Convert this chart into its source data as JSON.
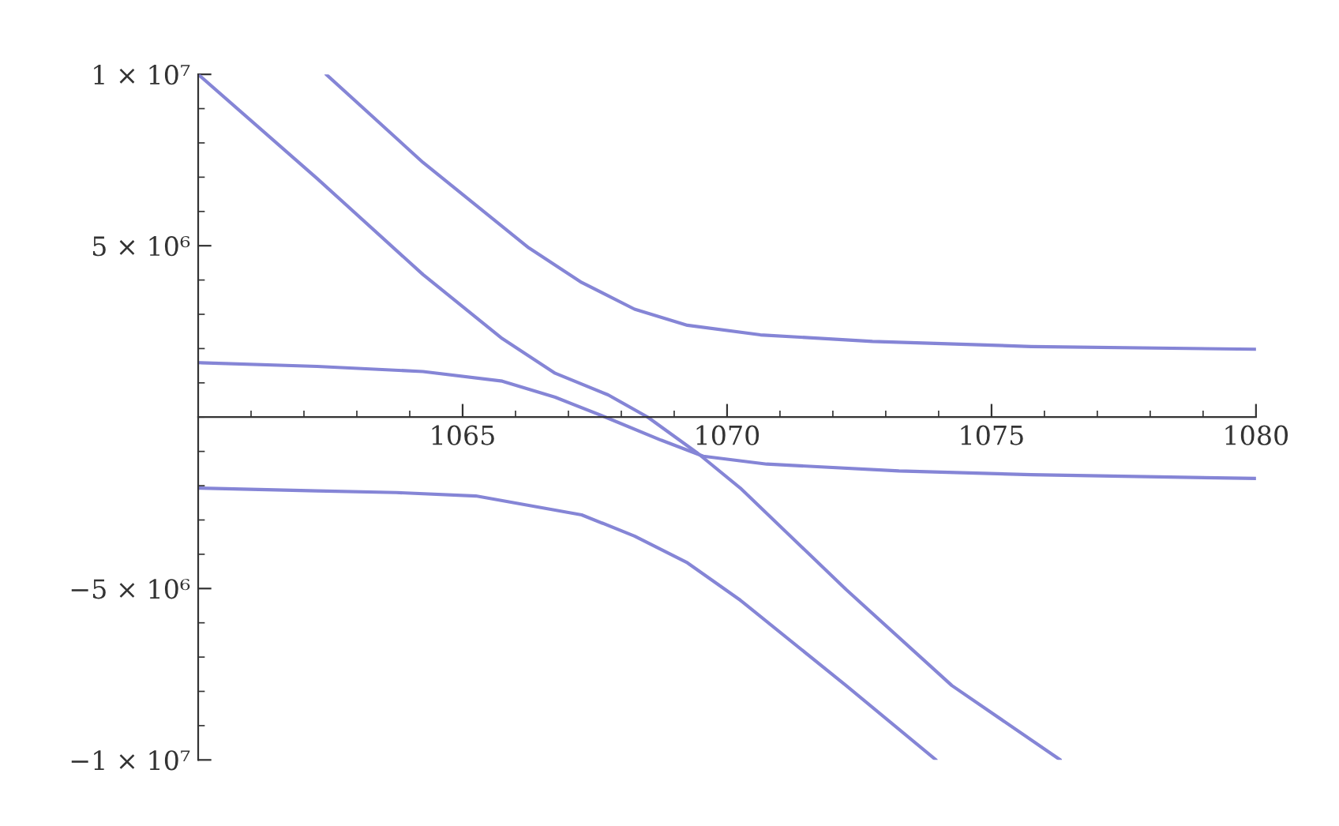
{
  "chart_data": {
    "type": "line",
    "xlim": [
      1060,
      1080
    ],
    "ylim": [
      -10000000,
      10000000
    ],
    "xticks": [
      1065,
      1070,
      1075,
      1080
    ],
    "yticks": [
      {
        "value": 10000000,
        "label": "1 × 10⁷"
      },
      {
        "value": 5000000,
        "label": "5 × 10⁶"
      },
      {
        "value": -5000000,
        "label": "−5 × 10⁶"
      },
      {
        "value": -10000000,
        "label": "−1 × 10⁷"
      }
    ],
    "grid": false,
    "marker": "none",
    "line_style": "solid",
    "series": [
      {
        "color": "#8585d6",
        "x": [
          1062.42,
          1064.25,
          1066.25,
          1067.25,
          1068.25,
          1069.25,
          1070.63,
          1072.75,
          1075.75,
          1080
        ],
        "values": [
          10000000,
          7430000,
          4940000,
          3930000,
          3150000,
          2680000,
          2400000,
          2210000,
          2060000,
          1980000
        ]
      },
      {
        "color": "#8585d6",
        "x": [
          1060,
          1062.25,
          1064.25,
          1065.75,
          1066.75,
          1067.75,
          1068.5,
          1069.45,
          1070.25,
          1072.25,
          1074.25,
          1076.3
        ],
        "values": [
          10000000,
          6960000,
          4160000,
          2290000,
          1280000,
          650000,
          0,
          -1060000,
          -2070000,
          -5030000,
          -7830000,
          -10000000
        ]
      },
      {
        "color": "#8585d6",
        "x": [
          1060,
          1062.25,
          1064.25,
          1065.75,
          1066.75,
          1067.7,
          1068.75,
          1069.55,
          1070.75,
          1073.25,
          1075.75,
          1080
        ],
        "values": [
          1590000,
          1480000,
          1330000,
          1050000,
          580000,
          0,
          -670000,
          -1140000,
          -1370000,
          -1570000,
          -1680000,
          -1790000
        ]
      },
      {
        "color": "#8585d6",
        "x": [
          1060,
          1062.25,
          1063.75,
          1065.25,
          1067.25,
          1068.25,
          1069.25,
          1070.25,
          1072.25,
          1073.95
        ],
        "values": [
          -2070000,
          -2150000,
          -2200000,
          -2300000,
          -2850000,
          -3470000,
          -4250000,
          -5340000,
          -7830000,
          -10000000
        ]
      }
    ]
  }
}
